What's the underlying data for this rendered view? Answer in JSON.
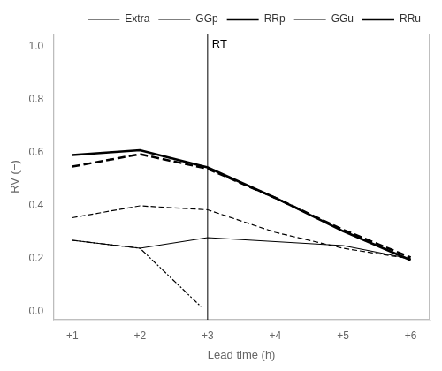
{
  "chart_data": {
    "type": "line",
    "x_label": "Lead time (h)",
    "y_label": "RV (−)",
    "series": [
      {
        "name": "Extra",
        "color": "black",
        "line_style": "dashdotdot",
        "x": [
          1,
          2,
          2.9
        ],
        "values": [
          0.27,
          0.24,
          0.02
        ]
      },
      {
        "name": "GGp",
        "color": "black",
        "line_style": "dashed",
        "x": [
          1,
          2,
          3,
          4,
          5,
          6
        ],
        "values": [
          0.355,
          0.4,
          0.385,
          0.3,
          0.24,
          0.2
        ]
      },
      {
        "name": "RRp",
        "color": "black",
        "line_style": "thick-dashed",
        "x": [
          1,
          2,
          3,
          4,
          5,
          6
        ],
        "values": [
          0.548,
          0.595,
          0.54,
          0.43,
          0.31,
          0.205
        ]
      },
      {
        "name": "GGu",
        "color": "black",
        "line_style": "solid",
        "x": [
          1,
          2,
          3,
          4,
          5,
          6
        ],
        "values": [
          0.27,
          0.24,
          0.28,
          0.265,
          0.25,
          0.2
        ]
      },
      {
        "name": "RRu",
        "color": "black",
        "line_style": "thick-solid",
        "x": [
          1,
          2,
          3,
          4,
          5,
          6
        ],
        "values": [
          0.592,
          0.61,
          0.545,
          0.43,
          0.305,
          0.195
        ]
      }
    ],
    "annotations": [
      {
        "x": 3,
        "text": "RT",
        "color": "black"
      }
    ],
    "xlim": [
      0.72,
      6.28
    ],
    "xticks": [
      {
        "value": 1,
        "label": "+1"
      },
      {
        "value": 2,
        "label": "+2"
      },
      {
        "value": 3,
        "label": "+3"
      },
      {
        "value": 4,
        "label": "+4"
      },
      {
        "value": 5,
        "label": "+5"
      },
      {
        "value": 6,
        "label": "+6"
      }
    ],
    "ylim": [
      -0.03,
      1.05
    ],
    "yticks": [
      {
        "value": 0.0,
        "label": "0.0"
      },
      0.2,
      0.4,
      0.6,
      0.8,
      {
        "value": 1.0,
        "label": "1.0"
      }
    ],
    "grid": false,
    "legend": "upper right"
  }
}
